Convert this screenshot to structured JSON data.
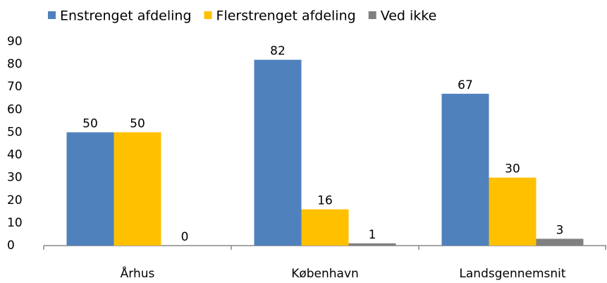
{
  "chart_data": {
    "type": "bar",
    "categories": [
      "Århus",
      "København",
      "Landsgennemsnit"
    ],
    "series": [
      {
        "name": "Enstrenget afdeling",
        "color": "#4f81bd",
        "values": [
          50,
          82,
          67
        ]
      },
      {
        "name": "Flerstrenget afdeling",
        "color": "#ffc000",
        "values": [
          50,
          16,
          30
        ]
      },
      {
        "name": "Ved ikke",
        "color": "#808080",
        "values": [
          0,
          1,
          3
        ]
      }
    ],
    "ylim": [
      0,
      90
    ],
    "yticks": [
      0,
      10,
      20,
      30,
      40,
      50,
      60,
      70,
      80,
      90
    ],
    "grid": false,
    "legend": "top"
  }
}
